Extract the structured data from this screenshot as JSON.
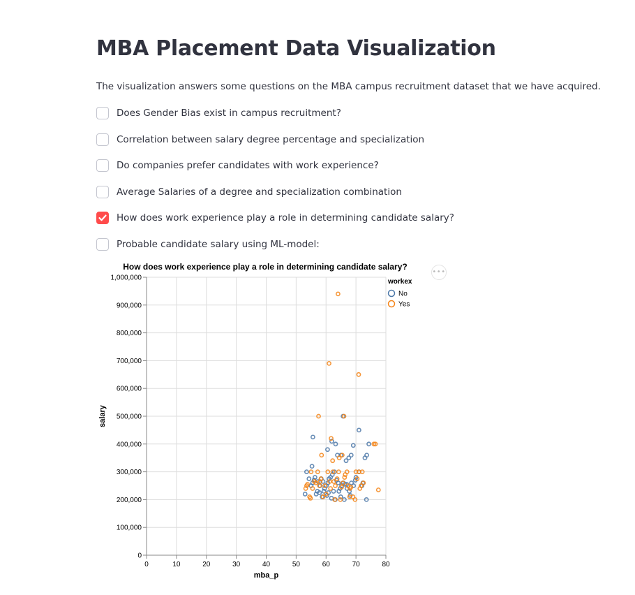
{
  "page": {
    "title": "MBA Placement Data Visualization",
    "description": "The visualization answers some questions on the MBA campus recruitment dataset that we have acquired."
  },
  "options": [
    {
      "label": "Does Gender Bias exist in campus recruitment?",
      "checked": false
    },
    {
      "label": "Correlation between salary degree percentage and specialization",
      "checked": false
    },
    {
      "label": "Do companies prefer candidates with work experience?",
      "checked": false
    },
    {
      "label": "Average Salaries of a degree and specialization combination",
      "checked": false
    },
    {
      "label": "How does work experience play a role in determining candidate salary?",
      "checked": true
    },
    {
      "label": "Probable candidate salary using ML-model:",
      "checked": false
    }
  ],
  "chart_menu": {
    "icon": "more-horizontal-icon",
    "glyph": "•••"
  },
  "colors": {
    "accent": "#ff4b4b",
    "no": "#4c78a8",
    "yes": "#f58518"
  },
  "chart_data": {
    "type": "scatter",
    "title": "How does work experience play a role in determining candidate salary?",
    "xlabel": "mba_p",
    "ylabel": "salary",
    "xlim": [
      0,
      80
    ],
    "ylim": [
      0,
      1000000
    ],
    "x_ticks": [
      0,
      10,
      20,
      30,
      40,
      50,
      60,
      70,
      80
    ],
    "x_tick_labels": [
      "0",
      "10",
      "20",
      "30",
      "40",
      "50",
      "60",
      "70",
      "80"
    ],
    "y_ticks": [
      0,
      100000,
      200000,
      300000,
      400000,
      500000,
      600000,
      700000,
      800000,
      900000,
      1000000
    ],
    "y_tick_labels": [
      "0",
      "100,000",
      "200,000",
      "300,000",
      "400,000",
      "500,000",
      "600,000",
      "700,000",
      "800,000",
      "900,000",
      "1,000,000"
    ],
    "grid": true,
    "legend_title": "workex",
    "legend_position": "top-right",
    "series": [
      {
        "name": "No",
        "points": [
          [
            53.5,
            300000
          ],
          [
            54.3,
            275000
          ],
          [
            55.0,
            250000
          ],
          [
            55.5,
            260000
          ],
          [
            56.0,
            270000
          ],
          [
            56.7,
            220000
          ],
          [
            57.3,
            265000
          ],
          [
            58.0,
            250000
          ],
          [
            58.4,
            275000
          ],
          [
            59.0,
            265000
          ],
          [
            59.5,
            240000
          ],
          [
            60.1,
            250000
          ],
          [
            60.6,
            260000
          ],
          [
            61.0,
            275000
          ],
          [
            61.5,
            280000
          ],
          [
            62.1,
            290000
          ],
          [
            62.8,
            300000
          ],
          [
            63.5,
            270000
          ],
          [
            64.1,
            260000
          ],
          [
            64.7,
            240000
          ],
          [
            65.2,
            250000
          ],
          [
            65.8,
            260000
          ],
          [
            66.3,
            255000
          ],
          [
            67.0,
            240000
          ],
          [
            67.8,
            230000
          ],
          [
            68.5,
            260000
          ],
          [
            69.2,
            250000
          ],
          [
            70.0,
            280000
          ],
          [
            71.0,
            300000
          ],
          [
            72.0,
            250000
          ],
          [
            55.3,
            320000
          ],
          [
            57.1,
            230000
          ],
          [
            58.7,
            210000
          ],
          [
            60.3,
            215000
          ],
          [
            61.8,
            205000
          ],
          [
            63.1,
            200000
          ],
          [
            64.9,
            210000
          ],
          [
            66.1,
            200000
          ],
          [
            68.1,
            215000
          ],
          [
            73.5,
            200000
          ],
          [
            55.6,
            425000
          ],
          [
            60.5,
            380000
          ],
          [
            61.9,
            410000
          ],
          [
            63.2,
            400000
          ],
          [
            63.8,
            360000
          ],
          [
            65.0,
            360000
          ],
          [
            66.7,
            340000
          ],
          [
            67.6,
            350000
          ],
          [
            68.4,
            360000
          ],
          [
            69.1,
            395000
          ],
          [
            71.0,
            450000
          ],
          [
            73.0,
            350000
          ],
          [
            73.6,
            360000
          ],
          [
            74.3,
            400000
          ],
          [
            65.7,
            500000
          ],
          [
            53.0,
            220000
          ],
          [
            56.3,
            280000
          ],
          [
            59.3,
            230000
          ],
          [
            62.5,
            230000
          ],
          [
            64.3,
            230000
          ],
          [
            66.9,
            255000
          ],
          [
            69.8,
            270000
          ],
          [
            72.3,
            260000
          ],
          [
            57.8,
            225000
          ],
          [
            60.8,
            225000
          ]
        ]
      },
      {
        "name": "Yes",
        "points": [
          [
            64.0,
            940000
          ],
          [
            61.0,
            690000
          ],
          [
            70.9,
            650000
          ],
          [
            57.5,
            500000
          ],
          [
            66.0,
            500000
          ],
          [
            58.5,
            360000
          ],
          [
            61.7,
            420000
          ],
          [
            62.2,
            340000
          ],
          [
            64.4,
            350000
          ],
          [
            65.4,
            360000
          ],
          [
            76.0,
            400000
          ],
          [
            76.5,
            400000
          ],
          [
            53.5,
            250000
          ],
          [
            54.5,
            210000
          ],
          [
            55.5,
            240000
          ],
          [
            56.6,
            260000
          ],
          [
            57.2,
            300000
          ],
          [
            58.3,
            275000
          ],
          [
            59.6,
            250000
          ],
          [
            60.6,
            300000
          ],
          [
            61.5,
            240000
          ],
          [
            62.3,
            300000
          ],
          [
            63.1,
            250000
          ],
          [
            64.2,
            300000
          ],
          [
            65.2,
            245000
          ],
          [
            66.2,
            280000
          ],
          [
            67.0,
            300000
          ],
          [
            68.0,
            240000
          ],
          [
            69.0,
            210000
          ],
          [
            70.0,
            300000
          ],
          [
            71.0,
            300000
          ],
          [
            71.7,
            250000
          ],
          [
            72.5,
            260000
          ],
          [
            77.5,
            235000
          ],
          [
            53.8,
            255000
          ],
          [
            55.0,
            300000
          ],
          [
            56.1,
            265000
          ],
          [
            57.8,
            250000
          ],
          [
            59.0,
            210000
          ],
          [
            60.0,
            220000
          ],
          [
            61.2,
            265000
          ],
          [
            62.9,
            200000
          ],
          [
            63.7,
            275000
          ],
          [
            64.8,
            200000
          ],
          [
            65.6,
            260000
          ],
          [
            66.4,
            290000
          ],
          [
            67.3,
            250000
          ],
          [
            68.3,
            245000
          ],
          [
            69.7,
            200000
          ],
          [
            70.4,
            275000
          ],
          [
            71.3,
            240000
          ],
          [
            72.1,
            300000
          ],
          [
            53.2,
            240000
          ],
          [
            54.8,
            205000
          ],
          [
            58.0,
            265000
          ],
          [
            62.6,
            265000
          ],
          [
            67.9,
            210000
          ]
        ]
      }
    ]
  }
}
